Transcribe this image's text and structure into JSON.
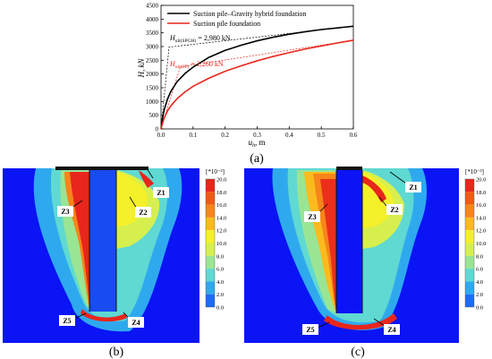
{
  "chart_data": [
    {
      "type": "line",
      "panel": "(a)",
      "xlabel_main": "u",
      "xlabel_sub": "h",
      "xlabel_tail": ", m",
      "ylabel": "H, kN",
      "xlim": [
        0,
        0.6
      ],
      "ylim": [
        0,
        4500
      ],
      "x_ticks": [
        "0.0",
        "0.1",
        "0.2",
        "0.3",
        "0.4",
        "0.5",
        "0.6"
      ],
      "y_ticks": [
        "0",
        "500",
        "1000",
        "1500",
        "2000",
        "2500",
        "3000",
        "3500",
        "4000",
        "4500"
      ],
      "grid": false,
      "legend_position": "top-left",
      "series": [
        {
          "name": "Suction pile–Gravity hybrid foundation",
          "color": "#000000",
          "x": [
            0,
            0.005,
            0.01,
            0.02,
            0.03,
            0.05,
            0.075,
            0.1,
            0.15,
            0.2,
            0.25,
            0.3,
            0.35,
            0.4,
            0.45,
            0.5,
            0.55,
            0.6
          ],
          "y": [
            0,
            420,
            700,
            1080,
            1350,
            1720,
            2020,
            2250,
            2610,
            2860,
            3050,
            3210,
            3340,
            3450,
            3540,
            3620,
            3680,
            3740
          ]
        },
        {
          "name": "Suction pile foundation",
          "color": "#e8261c",
          "x": [
            0,
            0.005,
            0.01,
            0.02,
            0.03,
            0.05,
            0.075,
            0.1,
            0.15,
            0.2,
            0.25,
            0.3,
            0.35,
            0.4,
            0.45,
            0.5,
            0.55,
            0.6
          ],
          "y": [
            0,
            220,
            400,
            650,
            830,
            1100,
            1350,
            1550,
            1850,
            2100,
            2300,
            2480,
            2640,
            2780,
            2910,
            3020,
            3130,
            3230
          ]
        }
      ],
      "tangent_lines": [
        {
          "color": "#000000",
          "x": [
            0,
            0.025,
            0.6
          ],
          "y": [
            0,
            2980,
            3740
          ]
        },
        {
          "color": "#e8261c",
          "x": [
            0,
            0.06,
            0.6
          ],
          "y": [
            0,
            2260,
            3230
          ]
        }
      ],
      "annotations": [
        {
          "prefix": "H",
          "sub": "ult(SPGH)",
          "value": " = 2,980 kN",
          "color": "#000000"
        },
        {
          "prefix": "H",
          "sub": "ult(SP)",
          "value": " = 2,260 kN",
          "color": "#e8261c"
        }
      ]
    },
    {
      "type": "heatmap",
      "panel": "(b)",
      "colorbar_title": "[*10⁻³]",
      "colorbar_ticks": [
        "20.0",
        "18.0",
        "16.0",
        "14.0",
        "12.0",
        "10.0",
        "8.0",
        "6.0",
        "4.0",
        "2.0",
        "0.0"
      ],
      "zones": [
        "Z1",
        "Z2",
        "Z3",
        "Z4",
        "Z5"
      ]
    },
    {
      "type": "heatmap",
      "panel": "(c)",
      "colorbar_title": "[*10⁻³]",
      "colorbar_ticks": [
        "20.0",
        "18.0",
        "16.0",
        "14.0",
        "12.0",
        "10.0",
        "8.0",
        "6.0",
        "4.0",
        "2.0",
        "0.0"
      ],
      "zones": [
        "Z1",
        "Z2",
        "Z3",
        "Z4",
        "Z5"
      ]
    }
  ],
  "colorbar_colors": [
    "#e8261c",
    "#f05a16",
    "#f7851a",
    "#fbbb1e",
    "#f4f02a",
    "#d6ef4e",
    "#99e594",
    "#5fd9d2",
    "#2fa9ee",
    "#1e6cf4",
    "#0a14f5"
  ]
}
